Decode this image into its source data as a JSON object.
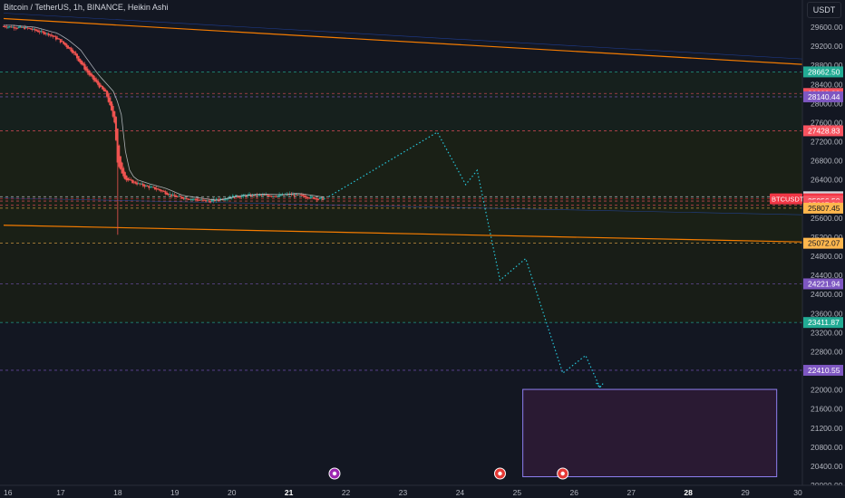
{
  "header": {
    "title": "Bitcoin / TetherUS, 1h, BINANCE, Heikin Ashi"
  },
  "currency_button": {
    "label": "USDT"
  },
  "chart_data": {
    "type": "candlestick",
    "symbol": "BTCUSDT",
    "ylim": [
      19950,
      30450
    ],
    "xlim": [
      16,
      30
    ],
    "x_ticks": [
      "16",
      "17",
      "18",
      "19",
      "20",
      "21",
      "22",
      "23",
      "24",
      "25",
      "26",
      "27",
      "28",
      "29",
      "30"
    ],
    "x_ticks_bold": [
      "21",
      "28"
    ],
    "y_ticks": [
      29600,
      29200,
      28800,
      28400,
      28000,
      27600,
      27200,
      26800,
      26400,
      26000,
      25600,
      25200,
      24800,
      24400,
      24000,
      23600,
      23200,
      22800,
      22400,
      22000,
      21600,
      21200,
      20800,
      20400,
      20000
    ],
    "candles_sample": [
      [
        16.0,
        29620
      ],
      [
        16.4,
        29580
      ],
      [
        16.8,
        29450
      ],
      [
        17.0,
        29300
      ],
      [
        17.2,
        29100
      ],
      [
        17.5,
        28600
      ],
      [
        17.8,
        28200
      ],
      [
        17.95,
        27600
      ],
      [
        18.0,
        26700
      ],
      [
        18.15,
        26400
      ],
      [
        18.4,
        26300
      ],
      [
        18.7,
        26200
      ],
      [
        19.0,
        26050
      ],
      [
        19.3,
        26000
      ],
      [
        19.6,
        25950
      ],
      [
        20.0,
        26050
      ],
      [
        20.4,
        26080
      ],
      [
        20.8,
        26070
      ],
      [
        21.0,
        26100
      ],
      [
        21.3,
        26050
      ],
      [
        21.55,
        26000
      ],
      [
        21.62,
        26010
      ]
    ],
    "price_labels": [
      {
        "value": 28662.5,
        "label": "28662.50",
        "color": "#22ab94"
      },
      {
        "value": 28209.93,
        "label": "28209.93",
        "color": "#f7525f"
      },
      {
        "value": 28140.44,
        "label": "28140.44",
        "color": "#7e57c2"
      },
      {
        "value": 27428.83,
        "label": "27428.83",
        "color": "#f7525f"
      },
      {
        "value": 26045.83,
        "label": "26045.83",
        "color": "#d1d4dc"
      },
      {
        "value": 26002.8,
        "label": "26002.80",
        "color": "#f23645",
        "symbol": "BTCUSDT",
        "countdown": "10:56"
      },
      {
        "value": 25956.5,
        "label": "25956.50",
        "color": "#f7525f"
      },
      {
        "value": 25867.94,
        "label": "25867.94",
        "color": "#f7525f"
      },
      {
        "value": 25807.45,
        "label": "25807.45",
        "color": "#ffb74d"
      },
      {
        "value": 25072.07,
        "label": "25072.07",
        "color": "#ffb74d"
      },
      {
        "value": 24221.94,
        "label": "24221.94",
        "color": "#7e57c2"
      },
      {
        "value": 23411.87,
        "label": "23411.87",
        "color": "#22ab94"
      },
      {
        "value": 22410.55,
        "label": "22410.55",
        "color": "#7e57c2"
      }
    ],
    "upper_trendline": [
      [
        16.0,
        29780
      ],
      [
        30.0,
        28820
      ]
    ],
    "lower_trendline": [
      [
        16.0,
        25450
      ],
      [
        30.0,
        25100
      ]
    ],
    "projection_path": [
      [
        21.7,
        26050
      ],
      [
        23.6,
        27400
      ],
      [
        24.1,
        26300
      ],
      [
        24.3,
        26600
      ],
      [
        24.7,
        24300
      ],
      [
        25.15,
        24750
      ],
      [
        25.8,
        22350
      ],
      [
        26.2,
        22720
      ],
      [
        26.45,
        22050
      ]
    ],
    "target_box": {
      "x": [
        25.1,
        29.55
      ],
      "y": [
        20180,
        22010
      ]
    },
    "event_markers": [
      21.8,
      24.7,
      25.8
    ],
    "colors": {
      "up": "#26a69a",
      "down": "#ef5350",
      "projection": "#26c6da",
      "box": "#7e57c2",
      "trendline": "#f57c00"
    }
  }
}
